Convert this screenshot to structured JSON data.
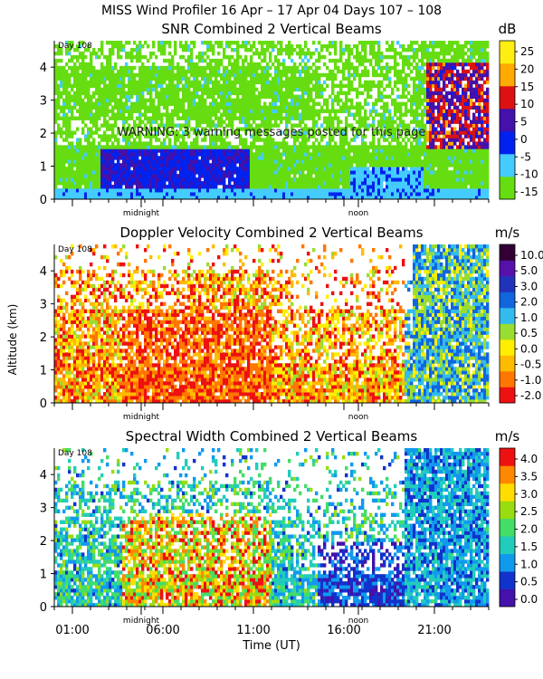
{
  "page_title": "MISS Wind Profiler  16 Apr – 17 Apr 04 Days 107 – 108",
  "warning": "WARNING:  3 warning messages posted for this page",
  "shared_axes": {
    "ylabel": "Altitude (km)",
    "xlabel": "Time (UT)",
    "xticks": [
      "01:00",
      "06:00",
      "11:00",
      "16:00",
      "21:00"
    ],
    "xtick_hours": [
      1,
      6,
      11,
      16,
      21
    ],
    "xlim_hours": [
      0,
      24
    ],
    "marker_labels": [
      "midnight",
      "noon"
    ],
    "marker_hours": [
      4.8,
      16.8
    ],
    "day_label": "Day 108"
  },
  "chart_data": [
    {
      "type": "heatmap",
      "title": "SNR Combined 2 Vertical Beams",
      "unit": "dB",
      "ylim": [
        0,
        4.8
      ],
      "yticks": [
        "0",
        "1",
        "2",
        "3",
        "4"
      ],
      "colorbar_ticks": [
        "25",
        "20",
        "15",
        "10",
        "5",
        "0",
        "-5",
        "-10",
        "-15"
      ],
      "colormap": [
        "#66dd11",
        "#44ccff",
        "#0022ee",
        "#4411aa",
        "#dd1111",
        "#ffaa00",
        "#ffee11"
      ]
    },
    {
      "type": "heatmap",
      "title": "Doppler Velocity Combined 2 Vertical Beams",
      "unit": "m/s",
      "ylim": [
        0,
        4.8
      ],
      "yticks": [
        "0",
        "1",
        "2",
        "3",
        "4"
      ],
      "colorbar_ticks": [
        "10.0",
        "5.0",
        "3.0",
        "2.0",
        "1.0",
        "0.5",
        "0.0",
        "-0.5",
        "-1.0",
        "-2.0"
      ],
      "colormap": [
        "#ee1111",
        "#ff7700",
        "#ffbb00",
        "#ffee00",
        "#99dd33",
        "#33bbee",
        "#1166dd",
        "#2233bb",
        "#5511aa",
        "#330033"
      ]
    },
    {
      "type": "heatmap",
      "title": "Spectral Width Combined 2 Vertical Beams",
      "unit": "m/s",
      "ylim": [
        0,
        4.8
      ],
      "yticks": [
        "0",
        "1",
        "2",
        "3",
        "4"
      ],
      "colorbar_ticks": [
        "4.0",
        "3.5",
        "3.0",
        "2.5",
        "2.0",
        "1.5",
        "1.0",
        "0.5",
        "0.0"
      ],
      "colormap": [
        "#4411aa",
        "#1133cc",
        "#1199ee",
        "#22ccbb",
        "#44dd66",
        "#99dd11",
        "#ffdd00",
        "#ff8800",
        "#ee1111"
      ]
    }
  ]
}
